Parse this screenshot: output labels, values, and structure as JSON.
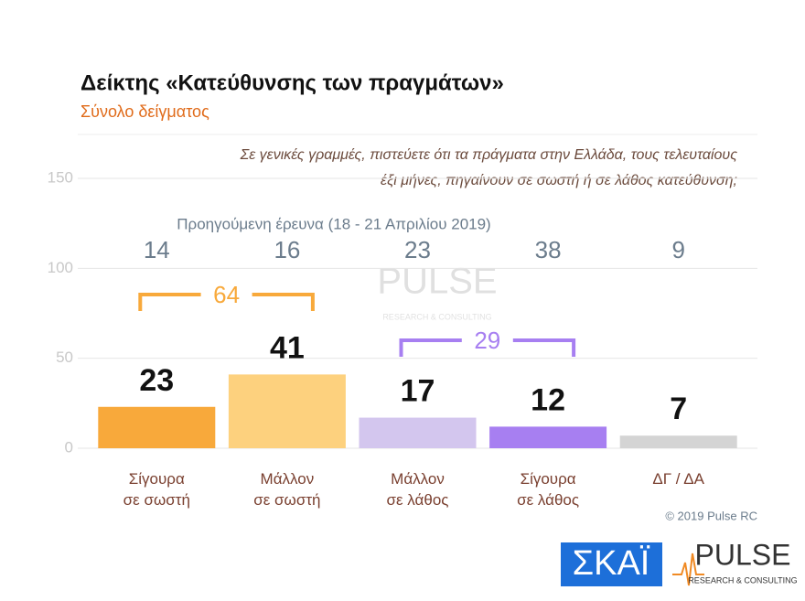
{
  "chart_data": {
    "type": "bar",
    "title": "Δείκτης «Κατεύθυνσης των πραγμάτων»",
    "subtitle": "Σύνολο δείγματος",
    "question": [
      "Σε γενικές γραμμές, πιστεύετε ότι τα πράγματα στην Ελλάδα, τους τελευταίους",
      "έξι μήνες, πηγαίνουν σε σωστή ή σε λάθος κατεύθυνση;"
    ],
    "categories": [
      "Σίγουρα\nσε σωστή",
      "Μάλλον\nσε σωστή",
      "Μάλλον\nσε λάθος",
      "Σίγουρα\nσε λάθος",
      "ΔΓ / ΔΑ"
    ],
    "values": [
      23,
      41,
      17,
      12,
      7
    ],
    "colors": [
      "#f8a93b",
      "#fdd17e",
      "#d3c6ee",
      "#a77ff1",
      "#d4d4d4"
    ],
    "previous": {
      "label": "Προηγούμενη έρευνα  (18 - 21  Απριλίου  2019)",
      "values": [
        14,
        16,
        23,
        38,
        9
      ]
    },
    "groups": [
      {
        "value": 64,
        "from": 0,
        "to": 1,
        "color": "#f8a93b"
      },
      {
        "value": 29,
        "from": 2,
        "to": 3,
        "color": "#a77ff1"
      }
    ],
    "ylim": [
      0,
      150
    ],
    "yticks": [
      0,
      50,
      100,
      150
    ],
    "grid": true,
    "copyright": "© 2019 Pulse RC",
    "logos": {
      "skai": "ΣΚΑΪ",
      "pulse": "PULSE",
      "pulse_sub": "RESEARCH & CONSULTING"
    }
  }
}
